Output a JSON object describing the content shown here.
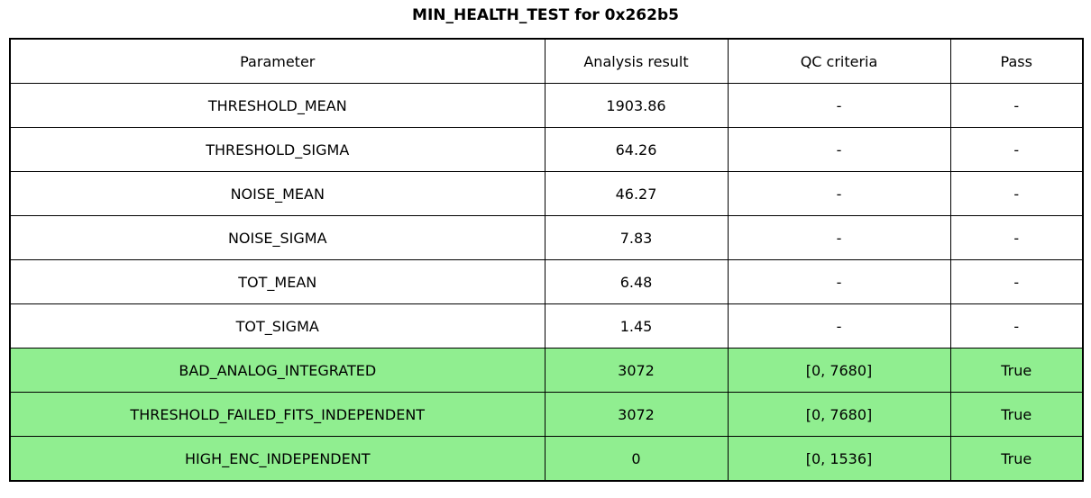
{
  "title": "MIN_HEALTH_TEST for 0x262b5",
  "chart_data": {
    "type": "table",
    "title": "MIN_HEALTH_TEST for 0x262b5",
    "columns": [
      "Parameter",
      "Analysis result",
      "QC criteria",
      "Pass"
    ],
    "rows": [
      [
        "THRESHOLD_MEAN",
        "1903.86",
        "-",
        "-"
      ],
      [
        "THRESHOLD_SIGMA",
        "64.26",
        "-",
        "-"
      ],
      [
        "NOISE_MEAN",
        "46.27",
        "-",
        "-"
      ],
      [
        "NOISE_SIGMA",
        "7.83",
        "-",
        "-"
      ],
      [
        "TOT_MEAN",
        "6.48",
        "-",
        "-"
      ],
      [
        "TOT_SIGMA",
        "1.45",
        "-",
        "-"
      ],
      [
        "BAD_ANALOG_INTEGRATED",
        "3072",
        "[0, 7680]",
        "True"
      ],
      [
        "THRESHOLD_FAILED_FITS_INDEPENDENT",
        "3072",
        "[0, 7680]",
        "True"
      ],
      [
        "HIGH_ENC_INDEPENDENT",
        "0",
        "[0, 1536]",
        "True"
      ]
    ],
    "highlighted_rows": [
      6,
      7,
      8
    ],
    "highlight_color": "#90EE90",
    "colors": {
      "background": "#FFFFFF",
      "border": "#000000",
      "text": "#000000"
    },
    "layout": {
      "grid": true,
      "header_row": true,
      "legend": "none"
    }
  }
}
